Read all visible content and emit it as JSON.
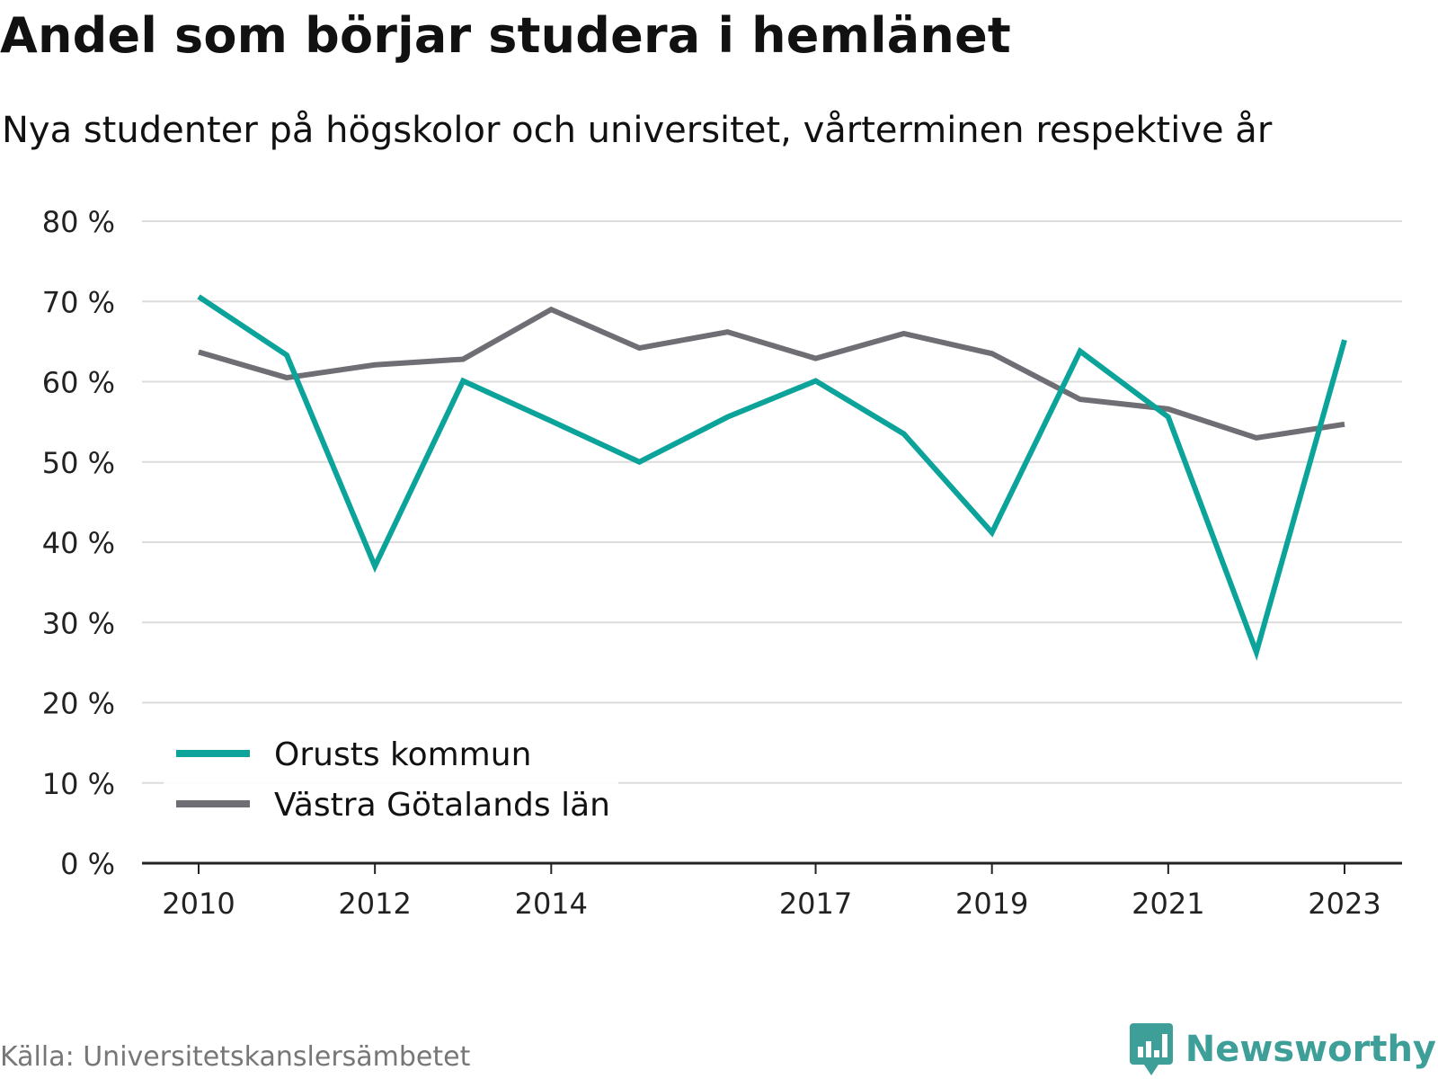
{
  "title": "Andel som börjar studera i hemlänet",
  "subtitle": "Nya studenter på högskolor och universitet, vårterminen respektive år",
  "source": "Källa: Universitetskanslersämbetet",
  "brand": {
    "name": "Newsworthy",
    "icon": "newsworthy-logo-icon",
    "color": "#3e9e98"
  },
  "chart_data": {
    "type": "line",
    "title": "Andel som börjar studera i hemlänet",
    "subtitle": "Nya studenter på högskolor och universitet, vårterminen respektive år",
    "x": [
      2010,
      2011,
      2012,
      2013,
      2014,
      2015,
      2016,
      2017,
      2018,
      2019,
      2020,
      2021,
      2022,
      2023
    ],
    "x_tick_labels": [
      "2010",
      "2012",
      "2014",
      "2017",
      "2019",
      "2021",
      "2023"
    ],
    "x_ticks": [
      2010,
      2012,
      2014,
      2017,
      2019,
      2021,
      2023
    ],
    "ylim": [
      0,
      80
    ],
    "y_ticks": [
      0,
      10,
      20,
      30,
      40,
      50,
      60,
      70,
      80
    ],
    "y_tick_labels": [
      "0 %",
      "10 %",
      "20 %",
      "30 %",
      "40 %",
      "50 %",
      "60 %",
      "70 %",
      "80 %"
    ],
    "grid": true,
    "legend_position": "bottom-left",
    "series": [
      {
        "name": "Orusts kommun",
        "color": "#0ca39a",
        "values": [
          70.6,
          63.3,
          37.0,
          60.1,
          55.1,
          50.0,
          55.6,
          60.1,
          53.5,
          41.2,
          63.8,
          55.6,
          26.3,
          65.2
        ]
      },
      {
        "name": "Västra Götalands län",
        "color": "#6e6e74",
        "values": [
          63.7,
          60.5,
          62.1,
          62.8,
          69.0,
          64.2,
          66.2,
          62.9,
          66.0,
          63.5,
          57.8,
          56.6,
          53.0,
          54.7
        ]
      }
    ]
  }
}
